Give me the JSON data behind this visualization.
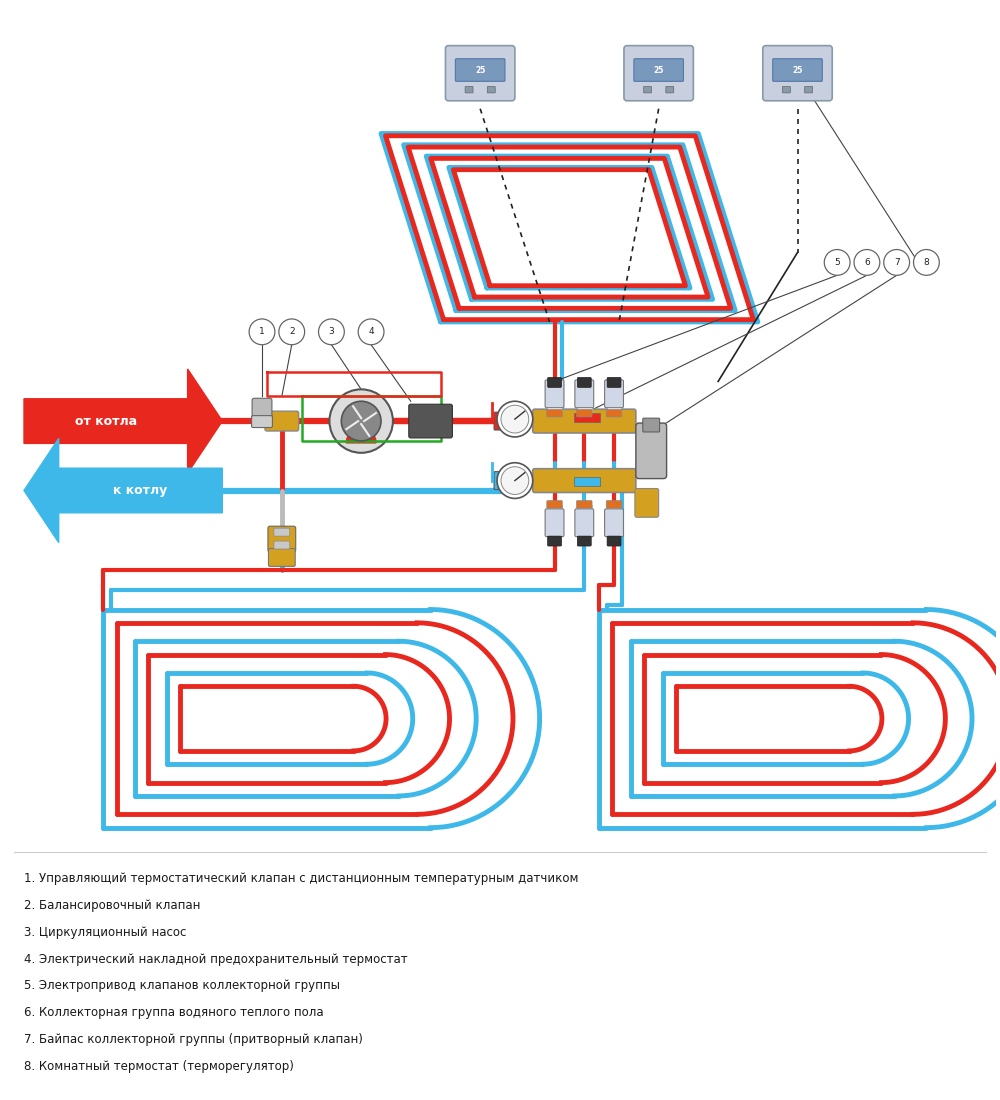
{
  "legend_items": [
    "1. Управляющий термостатический клапан с дистанционным температурным датчиком",
    "2. Балансировочный клапан",
    "3. Циркуляционный насос",
    "4. Электрический накладной предохранительный термостат",
    "5. Электропривод клапанов коллекторной группы",
    "6. Коллекторная группа водяного теплого пола",
    "7. Байпас коллекторной группы (притворный клапан)",
    "8. Комнатный термостат (терморегулятор)"
  ],
  "label_ot_kotla": "от котла",
  "label_k_kotlu": "к котлу",
  "red_color": "#e8281e",
  "blue_color": "#3db8e8",
  "green_color": "#22aa22",
  "gold_color": "#d4a020",
  "bg_color": "#ffffff"
}
